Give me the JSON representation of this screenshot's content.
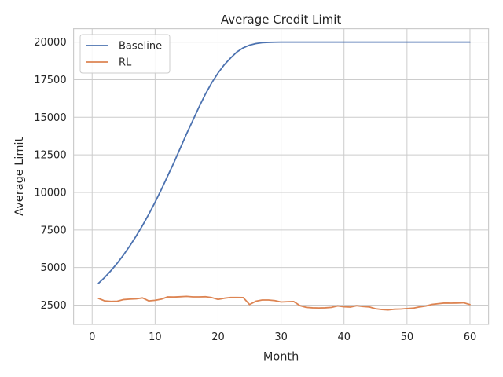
{
  "chart_data": {
    "type": "line",
    "title": "Average Credit Limit",
    "xlabel": "Month",
    "ylabel": "Average Limit",
    "xlim": [
      -2.95,
      62.95
    ],
    "ylim": [
      1220,
      20890
    ],
    "xticks": [
      0,
      10,
      20,
      30,
      40,
      50,
      60
    ],
    "yticks": [
      2500,
      5000,
      7500,
      10000,
      12500,
      15000,
      17500,
      20000
    ],
    "grid": true,
    "legend_position": "top-left",
    "series": [
      {
        "name": "Baseline",
        "color": "#4c72b0",
        "x": [
          1,
          2,
          3,
          4,
          5,
          6,
          7,
          8,
          9,
          10,
          11,
          12,
          13,
          14,
          15,
          16,
          17,
          18,
          19,
          20,
          21,
          22,
          23,
          24,
          25,
          26,
          27,
          28,
          29,
          30,
          31,
          32,
          33,
          34,
          35,
          36,
          37,
          38,
          39,
          40,
          41,
          42,
          43,
          44,
          45,
          46,
          47,
          48,
          49,
          50,
          51,
          52,
          53,
          54,
          55,
          56,
          57,
          58,
          59,
          60
        ],
        "values": [
          3950,
          4350,
          4800,
          5300,
          5850,
          6450,
          7100,
          7800,
          8550,
          9350,
          10200,
          11100,
          12000,
          12950,
          13900,
          14800,
          15700,
          16550,
          17300,
          17950,
          18500,
          18950,
          19350,
          19620,
          19800,
          19900,
          19960,
          19985,
          19995,
          20000,
          20000,
          20000,
          20000,
          20000,
          20000,
          20000,
          20000,
          20000,
          20000,
          20000,
          20000,
          20000,
          20000,
          20000,
          20000,
          20000,
          20000,
          20000,
          20000,
          20000,
          20000,
          20000,
          20000,
          20000,
          20000,
          20000,
          20000,
          20000,
          20000,
          20000
        ]
      },
      {
        "name": "RL",
        "color": "#dd8452",
        "x": [
          1,
          2,
          3,
          4,
          5,
          6,
          7,
          8,
          9,
          10,
          11,
          12,
          13,
          14,
          15,
          16,
          17,
          18,
          19,
          20,
          21,
          22,
          23,
          24,
          25,
          26,
          27,
          28,
          29,
          30,
          31,
          32,
          33,
          34,
          35,
          36,
          37,
          38,
          39,
          40,
          41,
          42,
          43,
          44,
          45,
          46,
          47,
          48,
          49,
          50,
          51,
          52,
          53,
          54,
          55,
          56,
          57,
          58,
          59,
          60
        ],
        "values": [
          2950,
          2780,
          2750,
          2760,
          2870,
          2900,
          2920,
          2980,
          2780,
          2820,
          2900,
          3050,
          3040,
          3060,
          3080,
          3050,
          3050,
          3060,
          3000,
          2880,
          2960,
          3010,
          3010,
          3000,
          2540,
          2760,
          2840,
          2840,
          2800,
          2710,
          2730,
          2740,
          2470,
          2350,
          2320,
          2310,
          2320,
          2350,
          2450,
          2390,
          2370,
          2460,
          2410,
          2380,
          2260,
          2210,
          2180,
          2230,
          2240,
          2270,
          2300,
          2380,
          2440,
          2550,
          2600,
          2640,
          2630,
          2640,
          2660,
          2540
        ]
      }
    ]
  }
}
